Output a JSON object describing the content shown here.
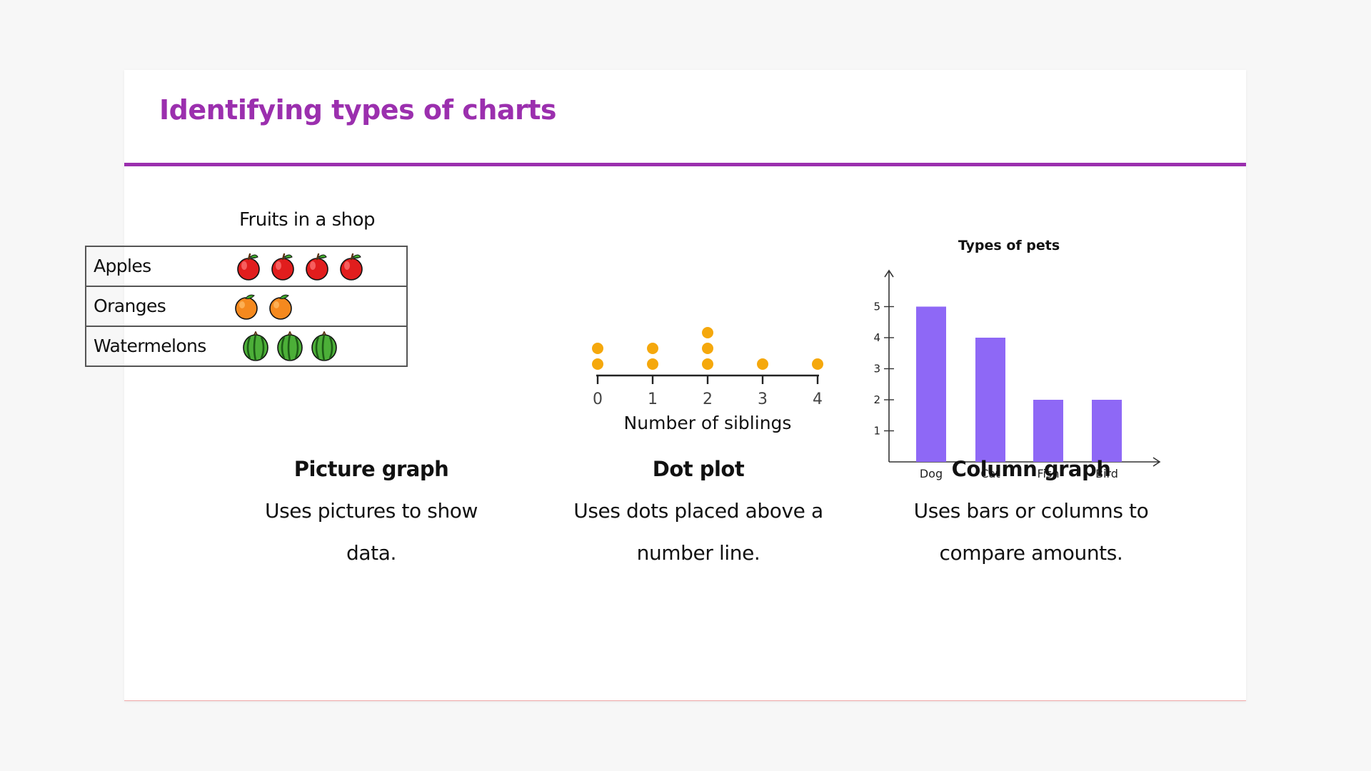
{
  "slide": {
    "title": "Identifying types of charts"
  },
  "picture_graph": {
    "caption_title": "Picture graph",
    "caption_desc": "Uses pictures to show data."
  },
  "dot_plot": {
    "caption_title": "Dot plot",
    "caption_desc": "Uses dots placed above a number line."
  },
  "column_graph": {
    "caption_title": "Column graph",
    "caption_desc": "Uses bars or columns to compare amounts."
  },
  "chart_data": [
    {
      "type": "table",
      "title": "Fruits in a shop",
      "categories": [
        "Apples",
        "Oranges",
        "Watermelons"
      ],
      "values": [
        4,
        2,
        3
      ],
      "icons": [
        "apple-icon",
        "orange-icon",
        "watermelon-icon"
      ]
    },
    {
      "type": "scatter",
      "title": "",
      "xlabel": "Number of siblings",
      "x_ticks": [
        0,
        1,
        2,
        3,
        4
      ],
      "counts": [
        2,
        2,
        3,
        1,
        1
      ],
      "colors": {
        "dot": "#f5a80c",
        "axis": "#222222"
      }
    },
    {
      "type": "bar",
      "title": "Types of pets",
      "categories": [
        "Dog",
        "Cat",
        "Fish",
        "Bird"
      ],
      "values": [
        5,
        4,
        2,
        2
      ],
      "y_ticks": [
        1,
        2,
        3,
        4,
        5
      ],
      "ylim": [
        0,
        5
      ],
      "xlabel": "",
      "ylabel": "",
      "colors": {
        "bar": "#8e68f6",
        "axis": "#333333"
      }
    }
  ]
}
